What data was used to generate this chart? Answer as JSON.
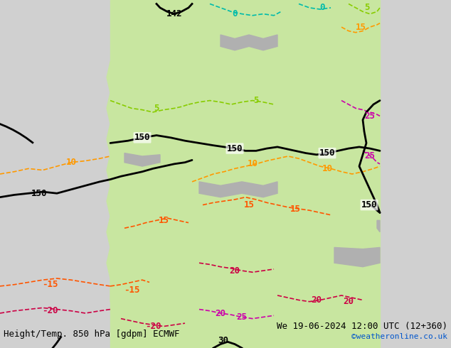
{
  "title_left": "Height/Temp. 850 hPa [gdpm] ECMWF",
  "title_right": "We 19-06-2024 12:00 UTC (12+360)",
  "copyright": "©weatheronline.co.uk",
  "bg_color": "#ffffff",
  "map_land_color": "#c8e6a0",
  "map_sea_color": "#e8e8e8",
  "map_highland_color": "#b0b0b0",
  "label_fontsize": 9,
  "title_fontsize": 9,
  "copyright_fontsize": 8,
  "copyright_color": "#0055cc",
  "geopotential_color": "#000000",
  "geopotential_linewidth": 2.0,
  "temp_colors": {
    "0": "#00ccaa",
    "5": "#88cc00",
    "10": "#ff9900",
    "15": "#ff5500",
    "20": "#dd0044",
    "25": "#cc00aa",
    "30": "#000000",
    "-15": "#ff5500",
    "-20": "#dd0044"
  },
  "geo_contour_value": 150,
  "geo_contour_label": "150",
  "geo_label_142": "142",
  "geo_label_30": "30",
  "temp_label_0": "0",
  "temp_label_5": "5",
  "temp_label_10": "10",
  "temp_label_15": "15",
  "temp_label_20": "20",
  "temp_label_25": "25",
  "temp_label_30": "30",
  "temp_label_neg15": "-15",
  "temp_label_neg20": "-20"
}
